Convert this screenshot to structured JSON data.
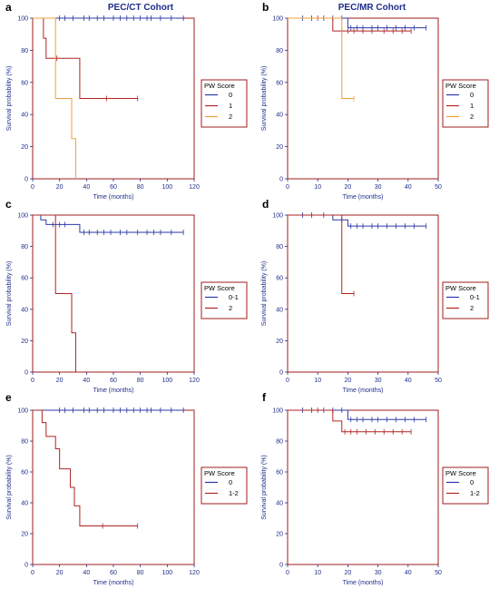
{
  "columns": [
    {
      "title": "PEC/CT Cohort"
    },
    {
      "title": "PEC/MR Cohort"
    }
  ],
  "chart_data": [
    {
      "type": "line",
      "panel": "a",
      "step": true,
      "xlabel": "Time (months)",
      "ylabel": "Survival probability (%)",
      "xlim": [
        0,
        120
      ],
      "ylim": [
        0,
        100
      ],
      "xticks": [
        0,
        20,
        40,
        60,
        80,
        100,
        120
      ],
      "yticks": [
        0,
        20,
        40,
        60,
        80,
        100
      ],
      "legend_title": "PW Score",
      "series": [
        {
          "name": "0",
          "color": "#2b3aa6",
          "x": [
            0,
            112
          ],
          "y": [
            100,
            100
          ],
          "censor_x": [
            20,
            24,
            30,
            38,
            42,
            48,
            53,
            60,
            65,
            70,
            75,
            80,
            85,
            88,
            95,
            103,
            112
          ]
        },
        {
          "name": "1",
          "color": "#b02424",
          "x": [
            0,
            8,
            10,
            35,
            78
          ],
          "y": [
            100,
            87.5,
            75,
            50,
            50
          ],
          "censor_x": [
            18,
            55,
            78
          ]
        },
        {
          "name": "2",
          "color": "#f2a13a",
          "x": [
            0,
            17,
            29,
            32
          ],
          "y": [
            100,
            50,
            25,
            0
          ],
          "censor_x": []
        }
      ]
    },
    {
      "type": "line",
      "panel": "b",
      "step": true,
      "xlabel": "Time (months)",
      "ylabel": "Survival probability (%)",
      "xlim": [
        0,
        50
      ],
      "ylim": [
        0,
        100
      ],
      "xticks": [
        0,
        10,
        20,
        30,
        40,
        50
      ],
      "yticks": [
        0,
        20,
        40,
        60,
        80,
        100
      ],
      "legend_title": "PW Score",
      "series": [
        {
          "name": "0",
          "color": "#2b3aa6",
          "x": [
            0,
            20,
            46
          ],
          "y": [
            100,
            94,
            94
          ],
          "censor_x": [
            5,
            8,
            12,
            15,
            18,
            21,
            23,
            25,
            28,
            30,
            33,
            36,
            39,
            42,
            46
          ]
        },
        {
          "name": "1",
          "color": "#b02424",
          "x": [
            0,
            15,
            41
          ],
          "y": [
            100,
            92,
            92
          ],
          "censor_x": [
            10,
            18,
            20,
            22,
            25,
            28,
            32,
            35,
            38,
            41
          ]
        },
        {
          "name": "2",
          "color": "#f2a13a",
          "x": [
            0,
            18,
            22
          ],
          "y": [
            100,
            50,
            50
          ],
          "censor_x": [
            22
          ]
        }
      ]
    },
    {
      "type": "line",
      "panel": "c",
      "step": true,
      "xlabel": "Time (months)",
      "ylabel": "Survival probability (%)",
      "xlim": [
        0,
        120
      ],
      "ylim": [
        0,
        100
      ],
      "xticks": [
        0,
        20,
        40,
        60,
        80,
        100,
        120
      ],
      "yticks": [
        0,
        20,
        40,
        60,
        80,
        100
      ],
      "legend_title": "PW Score",
      "series": [
        {
          "name": "0-1",
          "color": "#2b3aa6",
          "x": [
            0,
            6,
            10,
            35,
            112
          ],
          "y": [
            100,
            97,
            94,
            89,
            89
          ],
          "censor_x": [
            15,
            20,
            24,
            38,
            42,
            48,
            53,
            58,
            65,
            70,
            78,
            85,
            90,
            95,
            103,
            112
          ]
        },
        {
          "name": "2",
          "color": "#b02424",
          "x": [
            0,
            17,
            29,
            32
          ],
          "y": [
            100,
            50,
            25,
            0
          ],
          "censor_x": []
        }
      ]
    },
    {
      "type": "line",
      "panel": "d",
      "step": true,
      "xlabel": "Time (months)",
      "ylabel": "Survival probability (%)",
      "xlim": [
        0,
        50
      ],
      "ylim": [
        0,
        100
      ],
      "xticks": [
        0,
        10,
        20,
        30,
        40,
        50
      ],
      "yticks": [
        0,
        20,
        40,
        60,
        80,
        100
      ],
      "legend_title": "PW Score",
      "series": [
        {
          "name": "0-1",
          "color": "#2b3aa6",
          "x": [
            0,
            15,
            20,
            46
          ],
          "y": [
            100,
            97,
            93,
            93
          ],
          "censor_x": [
            5,
            8,
            12,
            18,
            21,
            23,
            25,
            28,
            30,
            33,
            36,
            39,
            42,
            46
          ]
        },
        {
          "name": "2",
          "color": "#b02424",
          "x": [
            0,
            18,
            22
          ],
          "y": [
            100,
            50,
            50
          ],
          "censor_x": [
            22
          ]
        }
      ]
    },
    {
      "type": "line",
      "panel": "e",
      "step": true,
      "xlabel": "Time (months)",
      "ylabel": "Survival probability (%)",
      "xlim": [
        0,
        120
      ],
      "ylim": [
        0,
        100
      ],
      "xticks": [
        0,
        20,
        40,
        60,
        80,
        100,
        120
      ],
      "yticks": [
        0,
        20,
        40,
        60,
        80,
        100
      ],
      "legend_title": "PW Score",
      "series": [
        {
          "name": "0",
          "color": "#2b3aa6",
          "x": [
            0,
            112
          ],
          "y": [
            100,
            100
          ],
          "censor_x": [
            20,
            24,
            30,
            38,
            42,
            48,
            53,
            60,
            65,
            70,
            75,
            80,
            85,
            88,
            95,
            103,
            112
          ]
        },
        {
          "name": "1-2",
          "color": "#b02424",
          "x": [
            0,
            7,
            10,
            17,
            20,
            28,
            31,
            35,
            78
          ],
          "y": [
            100,
            92,
            83,
            75,
            62,
            50,
            38,
            25,
            25
          ],
          "censor_x": [
            52,
            78
          ]
        }
      ]
    },
    {
      "type": "line",
      "panel": "f",
      "step": true,
      "xlabel": "Time (months)",
      "ylabel": "Survival probability (%)",
      "xlim": [
        0,
        50
      ],
      "ylim": [
        0,
        100
      ],
      "xticks": [
        0,
        10,
        20,
        30,
        40,
        50
      ],
      "yticks": [
        0,
        20,
        40,
        60,
        80,
        100
      ],
      "legend_title": "PW Score",
      "series": [
        {
          "name": "0",
          "color": "#2b3aa6",
          "x": [
            0,
            20,
            46
          ],
          "y": [
            100,
            94,
            94
          ],
          "censor_x": [
            5,
            8,
            12,
            15,
            18,
            21,
            23,
            25,
            28,
            30,
            33,
            36,
            39,
            42,
            46
          ]
        },
        {
          "name": "1-2",
          "color": "#b02424",
          "x": [
            0,
            15,
            18,
            41
          ],
          "y": [
            100,
            93,
            86,
            86
          ],
          "censor_x": [
            10,
            19,
            21,
            23,
            26,
            29,
            32,
            35,
            38,
            41
          ]
        }
      ]
    }
  ]
}
